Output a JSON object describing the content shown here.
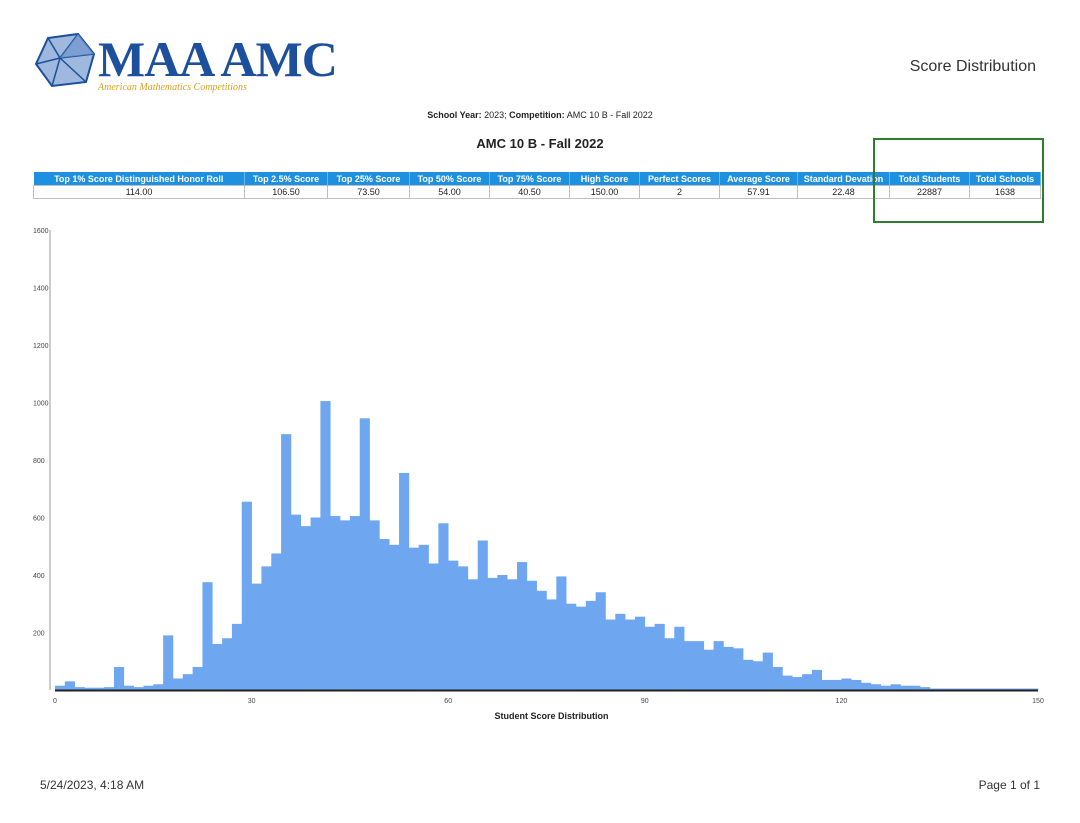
{
  "header": {
    "logo_text": "MAA AMC",
    "logo_subtitle": "American Mathematics Competitions",
    "report_title": "Score Distribution",
    "school_year_label": "School Year:",
    "school_year_value": "2023;",
    "competition_label": "Competition:",
    "competition_value": "AMC 10 B - Fall 2022",
    "chart_title": "AMC 10 B - Fall 2022"
  },
  "stats_table": {
    "headers": [
      "Top 1% Score Distinguished Honor Roll",
      "Top 2.5% Score",
      "Top 25% Score",
      "Top 50% Score",
      "Top 75% Score",
      "High Score",
      "Perfect Scores",
      "Average Score",
      "Standard Devation",
      "Total Students",
      "Total Schools"
    ],
    "values": [
      "114.00",
      "106.50",
      "73.50",
      "54.00",
      "40.50",
      "150.00",
      "2",
      "57.91",
      "22.48",
      "22887",
      "1638"
    ]
  },
  "colors": {
    "bar": "#6ea6f0",
    "header_bg": "#1e90e0",
    "highlight": "#2f7d2f",
    "logo": "#1c4f9c"
  },
  "chart_data": {
    "type": "bar",
    "title": "",
    "xlabel": "Student Score Distribution",
    "ylabel": "",
    "xlim": [
      0,
      150
    ],
    "ylim": [
      0,
      1600
    ],
    "x_ticks": [
      "0",
      "30",
      "60",
      "90",
      "120",
      "150"
    ],
    "y_ticks": [
      "200",
      "400",
      "600",
      "800",
      "1000",
      "1200",
      "1400",
      "1600"
    ],
    "bin_width": 1.5,
    "x": [
      0,
      1.5,
      3,
      4.5,
      6,
      7.5,
      9,
      10.5,
      12,
      13.5,
      15,
      16.5,
      18,
      19.5,
      21,
      22.5,
      24,
      25.5,
      27,
      28.5,
      30,
      31.5,
      33,
      34.5,
      36,
      37.5,
      39,
      40.5,
      42,
      43.5,
      45,
      46.5,
      48,
      49.5,
      51,
      52.5,
      54,
      55.5,
      57,
      58.5,
      60,
      61.5,
      63,
      64.5,
      66,
      67.5,
      69,
      70.5,
      72,
      73.5,
      75,
      76.5,
      78,
      79.5,
      81,
      82.5,
      84,
      85.5,
      87,
      88.5,
      90,
      91.5,
      93,
      94.5,
      96,
      97.5,
      99,
      100.5,
      102,
      103.5,
      105,
      106.5,
      108,
      109.5,
      111,
      112.5,
      114,
      115.5,
      117,
      118.5,
      120,
      121.5,
      123,
      124.5,
      126,
      127.5,
      129,
      130.5,
      132,
      133.5,
      135,
      136.5,
      138,
      139.5,
      141,
      142.5,
      144,
      145.5,
      147,
      148.5
    ],
    "values": [
      15,
      30,
      10,
      8,
      8,
      10,
      80,
      15,
      10,
      15,
      20,
      190,
      40,
      55,
      80,
      375,
      160,
      180,
      230,
      655,
      370,
      430,
      475,
      890,
      610,
      570,
      600,
      1005,
      605,
      590,
      605,
      945,
      590,
      525,
      505,
      755,
      495,
      505,
      440,
      580,
      450,
      430,
      385,
      520,
      390,
      400,
      385,
      445,
      380,
      345,
      315,
      395,
      300,
      290,
      310,
      340,
      245,
      265,
      245,
      255,
      220,
      230,
      180,
      220,
      170,
      170,
      140,
      170,
      150,
      145,
      105,
      100,
      130,
      80,
      50,
      45,
      55,
      70,
      35,
      35,
      40,
      35,
      25,
      20,
      15,
      20,
      15,
      15,
      10,
      5,
      5,
      5,
      5,
      5,
      5,
      5,
      5,
      5,
      5,
      5
    ]
  },
  "footer": {
    "datetime": "5/24/2023, 4:18 AM",
    "page": "Page 1 of 1"
  }
}
